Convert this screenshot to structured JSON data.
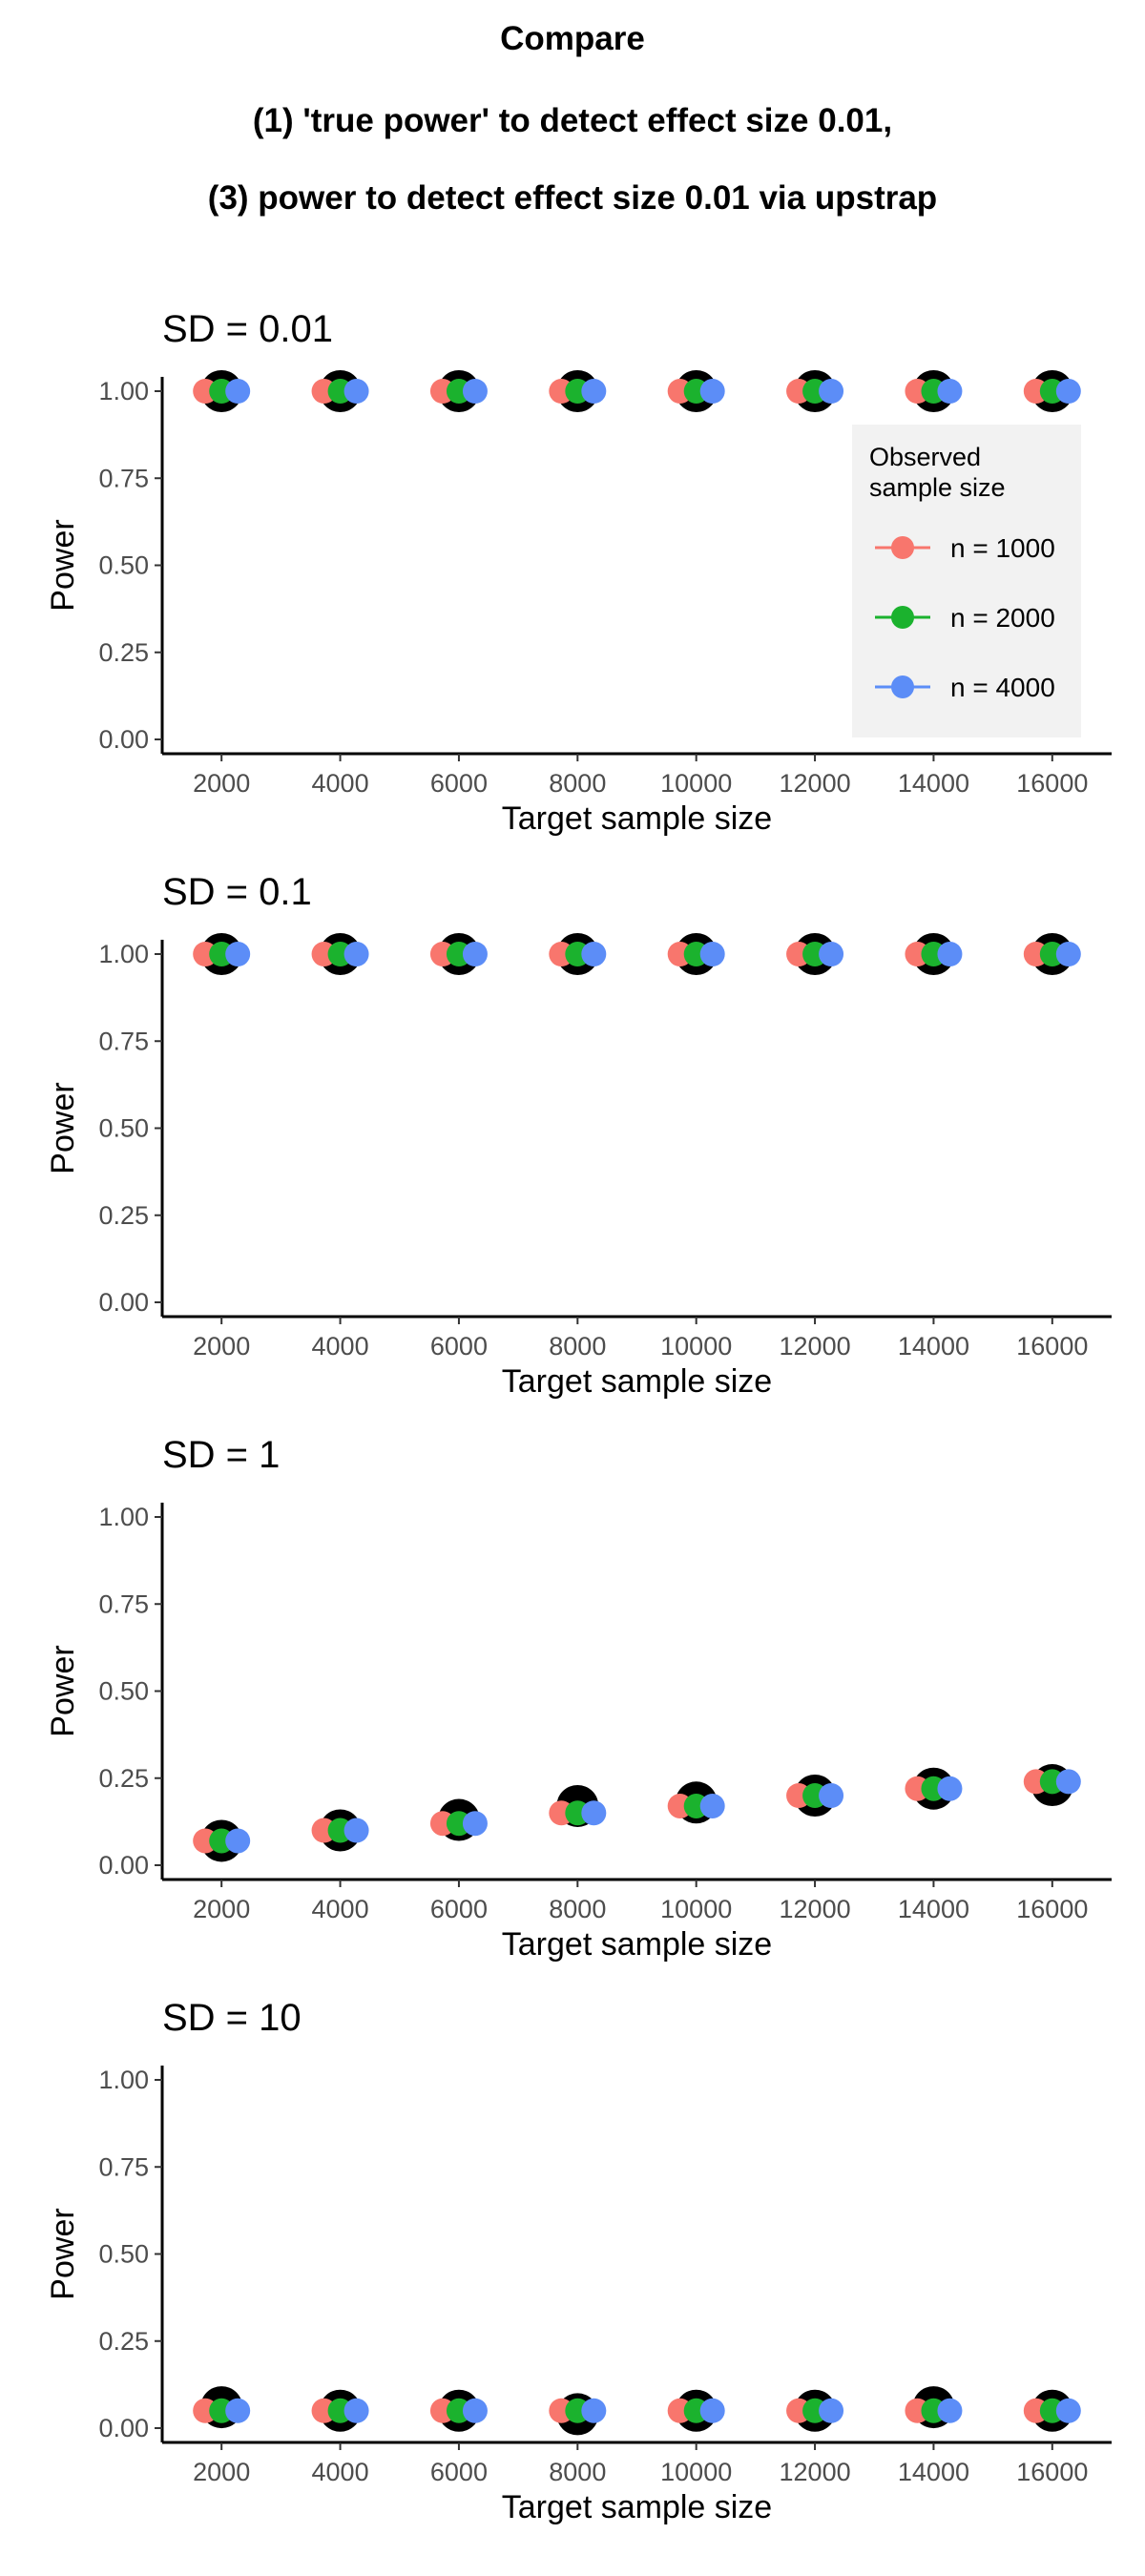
{
  "header": {
    "title_lines": [
      "Compare",
      "(1) 'true power' to detect effect size 0.01,",
      "(3) power to detect effect size 0.01 via upstrap"
    ]
  },
  "legend": {
    "title_lines": [
      "Observed",
      "sample size"
    ],
    "entries": [
      "n = 1000",
      "n = 2000",
      "n = 4000"
    ],
    "colors": [
      "#F8766D",
      "#1BB22E",
      "#5C8DF7"
    ],
    "placement": "right, inside first panel"
  },
  "chart_data": [
    {
      "type": "scatter",
      "title": "SD = 0.01",
      "xlabel": "Target sample size",
      "ylabel": "Power",
      "x": [
        2000,
        4000,
        6000,
        8000,
        10000,
        12000,
        14000,
        16000
      ],
      "xticks": [
        "2000",
        "4000",
        "6000",
        "8000",
        "10000",
        "12000",
        "14000",
        "16000"
      ],
      "yticks": [
        "0.00",
        "0.25",
        "0.50",
        "0.75",
        "1.00"
      ],
      "xlim": [
        1000,
        17000
      ],
      "ylim": [
        0,
        1
      ],
      "grid": false,
      "true_power": [
        1.0,
        1.0,
        1.0,
        1.0,
        1.0,
        1.0,
        1.0,
        1.0
      ],
      "series": [
        {
          "name": "n = 1000",
          "values": [
            1.0,
            1.0,
            1.0,
            1.0,
            1.0,
            1.0,
            1.0,
            1.0
          ]
        },
        {
          "name": "n = 2000",
          "values": [
            1.0,
            1.0,
            1.0,
            1.0,
            1.0,
            1.0,
            1.0,
            1.0
          ]
        },
        {
          "name": "n = 4000",
          "values": [
            1.0,
            1.0,
            1.0,
            1.0,
            1.0,
            1.0,
            1.0,
            1.0
          ]
        }
      ]
    },
    {
      "type": "scatter",
      "title": "SD = 0.1",
      "xlabel": "Target sample size",
      "ylabel": "Power",
      "x": [
        2000,
        4000,
        6000,
        8000,
        10000,
        12000,
        14000,
        16000
      ],
      "xticks": [
        "2000",
        "4000",
        "6000",
        "8000",
        "10000",
        "12000",
        "14000",
        "16000"
      ],
      "yticks": [
        "0.00",
        "0.25",
        "0.50",
        "0.75",
        "1.00"
      ],
      "xlim": [
        1000,
        17000
      ],
      "ylim": [
        0,
        1
      ],
      "grid": false,
      "true_power": [
        1.0,
        1.0,
        1.0,
        1.0,
        1.0,
        1.0,
        1.0,
        1.0
      ],
      "series": [
        {
          "name": "n = 1000",
          "values": [
            1.0,
            1.0,
            1.0,
            1.0,
            1.0,
            1.0,
            1.0,
            1.0
          ]
        },
        {
          "name": "n = 2000",
          "values": [
            1.0,
            1.0,
            1.0,
            1.0,
            1.0,
            1.0,
            1.0,
            1.0
          ]
        },
        {
          "name": "n = 4000",
          "values": [
            1.0,
            1.0,
            1.0,
            1.0,
            1.0,
            1.0,
            1.0,
            1.0
          ]
        }
      ]
    },
    {
      "type": "scatter",
      "title": "SD = 1",
      "xlabel": "Target sample size",
      "ylabel": "Power",
      "x": [
        2000,
        4000,
        6000,
        8000,
        10000,
        12000,
        14000,
        16000
      ],
      "xticks": [
        "2000",
        "4000",
        "6000",
        "8000",
        "10000",
        "12000",
        "14000",
        "16000"
      ],
      "yticks": [
        "0.00",
        "0.25",
        "0.50",
        "0.75",
        "1.00"
      ],
      "xlim": [
        1000,
        17000
      ],
      "ylim": [
        0,
        1
      ],
      "grid": false,
      "true_power": [
        0.07,
        0.1,
        0.13,
        0.17,
        0.18,
        0.2,
        0.22,
        0.23
      ],
      "series": [
        {
          "name": "n = 1000",
          "values": [
            0.07,
            0.1,
            0.12,
            0.15,
            0.17,
            0.2,
            0.22,
            0.24
          ]
        },
        {
          "name": "n = 2000",
          "values": [
            0.07,
            0.1,
            0.12,
            0.15,
            0.17,
            0.2,
            0.22,
            0.24
          ]
        },
        {
          "name": "n = 4000",
          "values": [
            0.07,
            0.1,
            0.12,
            0.15,
            0.17,
            0.2,
            0.22,
            0.24
          ]
        }
      ]
    },
    {
      "type": "scatter",
      "title": "SD = 10",
      "xlabel": "Target sample size",
      "ylabel": "Power",
      "x": [
        2000,
        4000,
        6000,
        8000,
        10000,
        12000,
        14000,
        16000
      ],
      "xticks": [
        "2000",
        "4000",
        "6000",
        "8000",
        "10000",
        "12000",
        "14000",
        "16000"
      ],
      "yticks": [
        "0.00",
        "0.25",
        "0.50",
        "0.75",
        "1.00"
      ],
      "xlim": [
        1000,
        17000
      ],
      "ylim": [
        0,
        1
      ],
      "grid": false,
      "true_power": [
        0.06,
        0.05,
        0.05,
        0.04,
        0.05,
        0.05,
        0.06,
        0.05
      ],
      "series": [
        {
          "name": "n = 1000",
          "values": [
            0.05,
            0.05,
            0.05,
            0.05,
            0.05,
            0.05,
            0.05,
            0.05
          ]
        },
        {
          "name": "n = 2000",
          "values": [
            0.05,
            0.05,
            0.05,
            0.05,
            0.05,
            0.05,
            0.05,
            0.05
          ]
        },
        {
          "name": "n = 4000",
          "values": [
            0.05,
            0.05,
            0.05,
            0.05,
            0.05,
            0.05,
            0.05,
            0.05
          ]
        }
      ]
    }
  ]
}
